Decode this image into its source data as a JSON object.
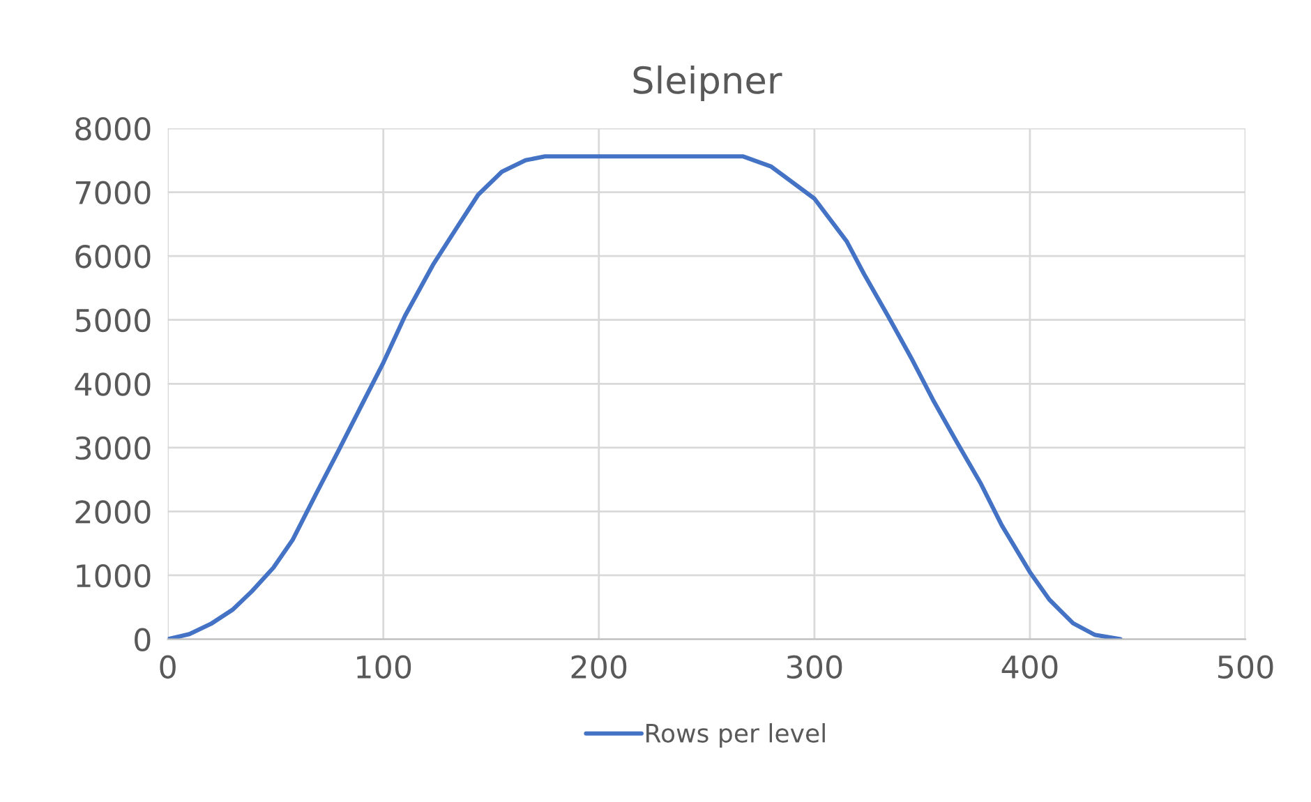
{
  "chart_data": {
    "type": "line",
    "title": "Sleipner",
    "xlim": [
      0,
      500
    ],
    "xticks": [
      0,
      100,
      200,
      300,
      400,
      500
    ],
    "ylim": [
      0,
      8000
    ],
    "yticks": [
      0,
      1000,
      2000,
      3000,
      4000,
      5000,
      6000,
      7000,
      8000
    ],
    "grid": true,
    "legend": "bottom",
    "marker": "none",
    "line_style": "solid",
    "series": [
      {
        "name": "Rows per level",
        "color": "#4472c4",
        "x": [
          0,
          10,
          20,
          30,
          39,
          49,
          58,
          69,
          79,
          90,
          100,
          110,
          123,
          134,
          144,
          155,
          166,
          175,
          267,
          280,
          300,
          315,
          323,
          334,
          345,
          355,
          366,
          377,
          387,
          400,
          409,
          420,
          430,
          442
        ],
        "values": [
          0,
          80,
          240,
          460,
          750,
          1120,
          1560,
          2290,
          2940,
          3670,
          4330,
          5060,
          5860,
          6440,
          6960,
          7320,
          7500,
          7560,
          7560,
          7400,
          6900,
          6230,
          5720,
          5070,
          4400,
          3750,
          3090,
          2450,
          1780,
          1050,
          620,
          250,
          70,
          0
        ]
      }
    ]
  }
}
